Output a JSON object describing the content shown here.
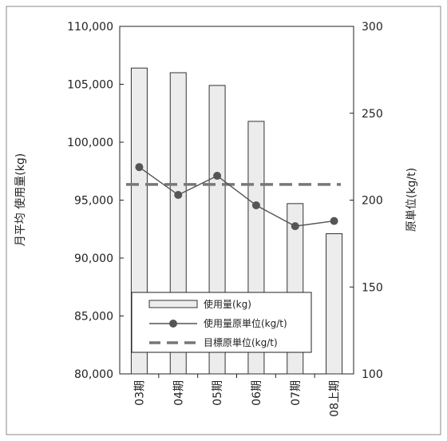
{
  "chart_data": {
    "type": "bar",
    "categories": [
      "03期",
      "04期",
      "05期",
      "06期",
      "07期",
      "08上期"
    ],
    "series": [
      {
        "name": "使用量(kg)",
        "kind": "bar",
        "axis": "left",
        "values": [
          106400,
          106000,
          104900,
          101800,
          94700,
          92100
        ]
      },
      {
        "name": "使用量原単位(kg/t)",
        "kind": "line",
        "axis": "right",
        "values": [
          219,
          203,
          214,
          197,
          185,
          188
        ]
      },
      {
        "name": "目標原単位(kg/t)",
        "kind": "dashed",
        "axis": "right",
        "values": [
          209,
          209,
          209,
          209,
          209,
          209
        ]
      }
    ],
    "title": "",
    "xlabel": "",
    "ylabel": "月平均 使用量(kg)",
    "y2label": "原単位(kg/t)",
    "ylim": [
      80000,
      110000
    ],
    "y2lim": [
      100,
      300
    ],
    "yticks": [
      "80,000",
      "85,000",
      "90,000",
      "95,000",
      "100,000",
      "105,000",
      "110,000"
    ],
    "y2ticks": [
      "100",
      "150",
      "200",
      "250",
      "300"
    ],
    "grid": false,
    "legend_position": "bottom-center",
    "colors": {
      "bar_fill": "#ececec",
      "bar_stroke": "#333333",
      "line": "#555555",
      "marker": "#555555",
      "target": "#777777"
    }
  }
}
